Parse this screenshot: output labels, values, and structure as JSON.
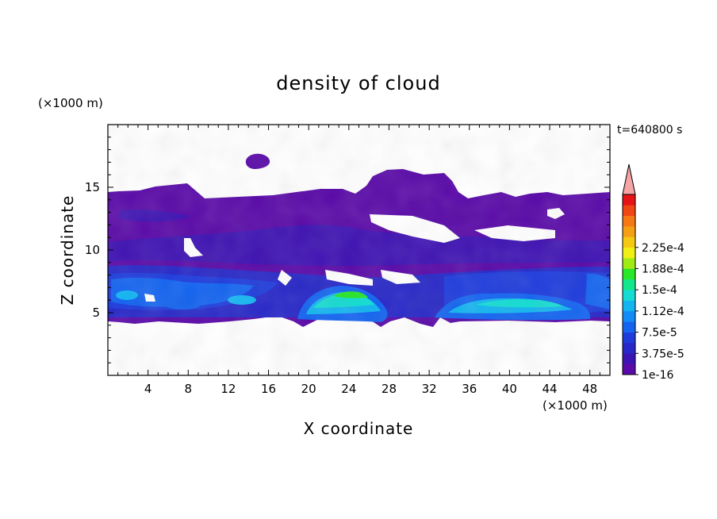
{
  "chart_data": {
    "type": "heatmap",
    "title": "density of cloud",
    "xlabel": "X coordinate",
    "ylabel": "Z coordinate",
    "x_unit": "(×1000 m)",
    "y_unit": "(×1000 m)",
    "time_label": "t=640800 s",
    "xlim": [
      0,
      50
    ],
    "ylim": [
      0,
      20
    ],
    "x_ticks": [
      4,
      8,
      12,
      16,
      20,
      24,
      28,
      32,
      36,
      40,
      44,
      48
    ],
    "y_ticks": [
      5,
      10,
      15
    ],
    "colorbar": {
      "levels": [
        "1e-16",
        "3.75e-5",
        "7.5e-5",
        "1.12e-4",
        "1.5e-4",
        "1.88e-4",
        "2.25e-4"
      ],
      "colors": [
        "#5a0aa8",
        "#3c14b4",
        "#2828c8",
        "#1e3cdc",
        "#1464f0",
        "#148cf5",
        "#14b4f0",
        "#14dcd2",
        "#14e68c",
        "#28e628",
        "#a0eb14",
        "#f0f014",
        "#f5c814",
        "#f5a014",
        "#f57814",
        "#f04614",
        "#e61414"
      ],
      "extend_color": "#f5a5a5"
    },
    "regions": [
      {
        "name": "main cloud layer",
        "x": [
          0,
          50
        ],
        "z": [
          4.3,
          14.5
        ],
        "level": "1e-16"
      },
      {
        "name": "upper cloud",
        "x": [
          8,
          35
        ],
        "z": [
          10,
          16.3
        ],
        "level": "1e-16"
      },
      {
        "name": "isolated cloud",
        "x": [
          13.8,
          16.3
        ],
        "z": [
          16.4,
          17.5
        ],
        "level": "1e-16"
      },
      {
        "name": "dense core left",
        "x": [
          19.5,
          28
        ],
        "z": [
          4.5,
          6.7
        ],
        "peak": "1.5e-4"
      },
      {
        "name": "dense core right",
        "x": [
          33.5,
          48
        ],
        "z": [
          4.5,
          6.3
        ],
        "peak": "1.12e-4"
      }
    ]
  }
}
